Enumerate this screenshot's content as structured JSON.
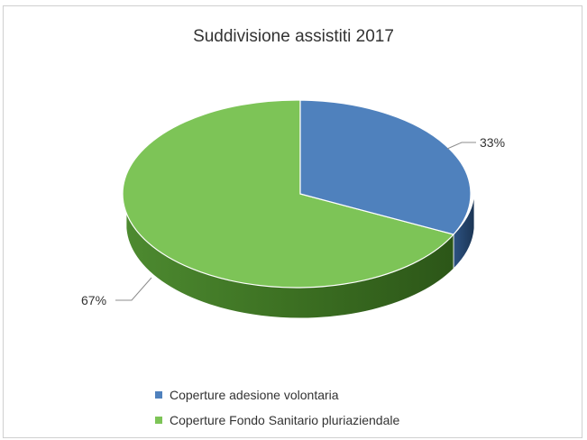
{
  "chart_data": {
    "type": "pie",
    "title": "Suddivisione assistiti 2017",
    "three_d": true,
    "legend_position": "bottom",
    "slices": [
      {
        "label": "Coperture adesione volontaria",
        "value": 33,
        "value_label": "33%",
        "color": "#4f81bd"
      },
      {
        "label": "Coperture Fondo Sanitario pluriaziendale",
        "value": 67,
        "value_label": "67%",
        "color": "#7dc457"
      }
    ]
  }
}
